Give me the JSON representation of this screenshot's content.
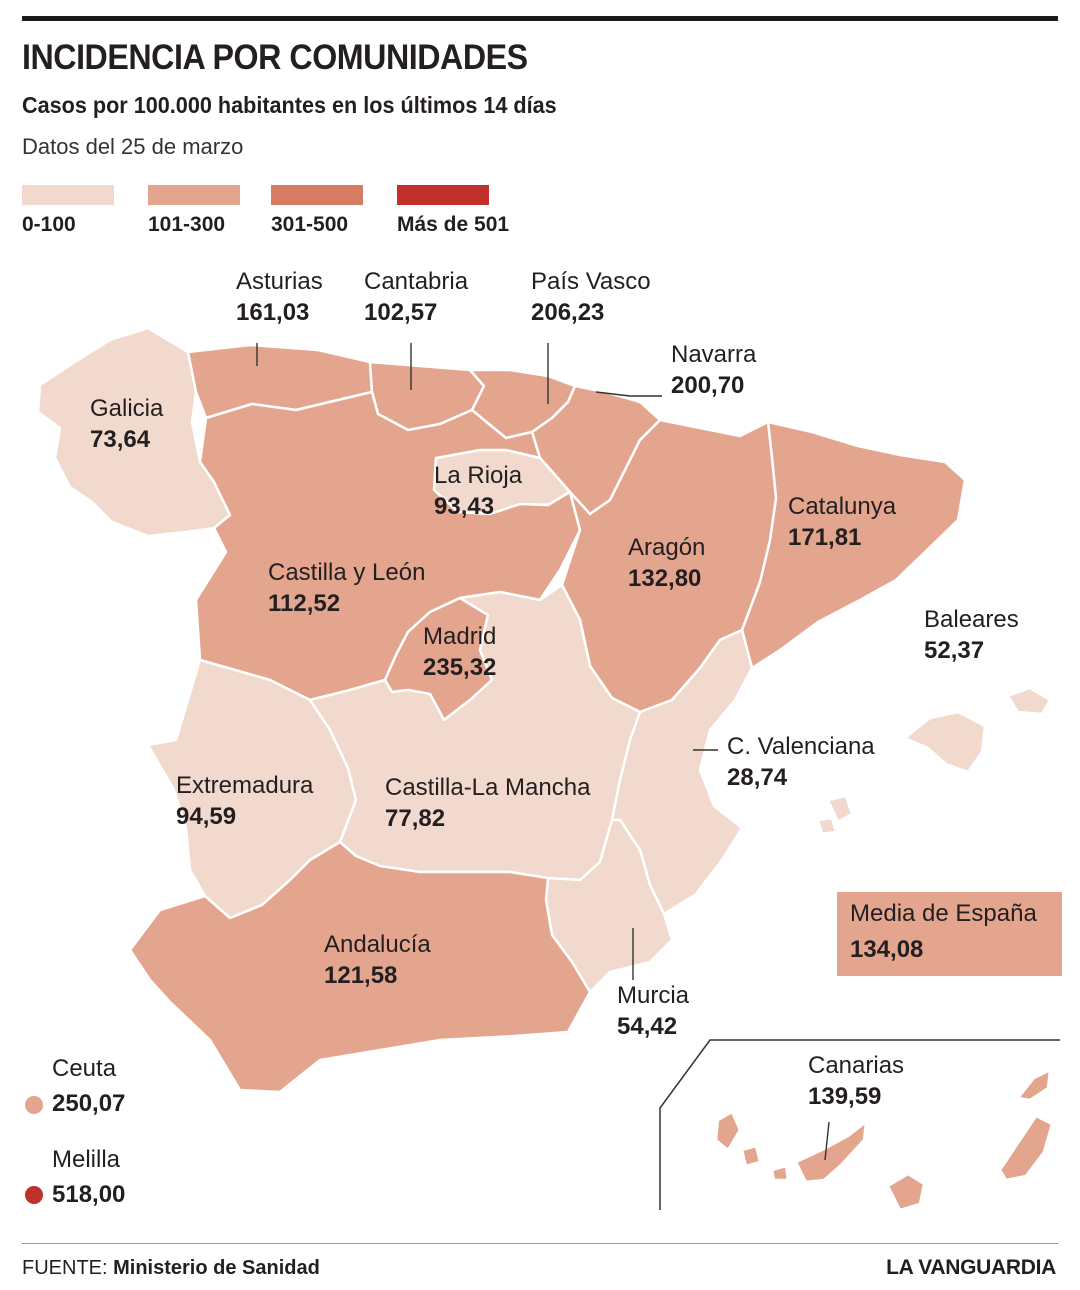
{
  "header": {
    "title": "INCIDENCIA POR COMUNIDADES",
    "subtitle": "Casos por 100.000 habitantes en los últimos 14 días",
    "date": "Datos del 25 de marzo"
  },
  "legend": [
    {
      "label": "0-100",
      "color": "#f1d9cd"
    },
    {
      "label": "101-300",
      "color": "#e4a58f"
    },
    {
      "label": "301-500",
      "color": "#d57c62"
    },
    {
      "label": "Más de 501",
      "color": "#c0312b"
    }
  ],
  "regions": [
    {
      "id": "galicia",
      "name": "Galicia",
      "value": "73,64"
    },
    {
      "id": "asturias",
      "name": "Asturias",
      "value": "161,03"
    },
    {
      "id": "cantabria",
      "name": "Cantabria",
      "value": "102,57"
    },
    {
      "id": "pais-vasco",
      "name": "País Vasco",
      "value": "206,23"
    },
    {
      "id": "navarra",
      "name": "Navarra",
      "value": "200,70"
    },
    {
      "id": "la-rioja",
      "name": "La Rioja",
      "value": "93,43"
    },
    {
      "id": "catalunya",
      "name": "Catalunya",
      "value": "171,81"
    },
    {
      "id": "aragon",
      "name": "Aragón",
      "value": "132,80"
    },
    {
      "id": "castilla-leon",
      "name": "Castilla y León",
      "value": "112,52"
    },
    {
      "id": "madrid",
      "name": "Madrid",
      "value": "235,32"
    },
    {
      "id": "baleares",
      "name": "Baleares",
      "value": "52,37"
    },
    {
      "id": "c-valenciana",
      "name": "C. Valenciana",
      "value": "28,74"
    },
    {
      "id": "extremadura",
      "name": "Extremadura",
      "value": "94,59"
    },
    {
      "id": "castilla-la-mancha",
      "name": "Castilla-La Mancha",
      "value": "77,82"
    },
    {
      "id": "andalucia",
      "name": "Andalucía",
      "value": "121,58"
    },
    {
      "id": "murcia",
      "name": "Murcia",
      "value": "54,42"
    },
    {
      "id": "canarias",
      "name": "Canarias",
      "value": "139,59"
    }
  ],
  "average": {
    "label": "Media de España",
    "value": "134,08"
  },
  "ceuta": {
    "name": "Ceuta",
    "value": "250,07"
  },
  "melilla": {
    "name": "Melilla",
    "value": "518,00"
  },
  "footer": {
    "source_key": "FUENTE:",
    "source_name": "Ministerio de Sanidad",
    "brand": "LA VANGUARDIA"
  }
}
